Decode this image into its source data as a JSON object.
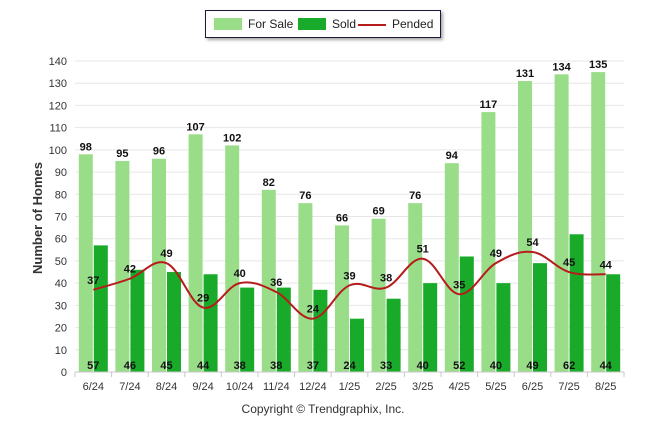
{
  "chart_data": {
    "type": "bar",
    "categories": [
      "6/24",
      "7/24",
      "8/24",
      "9/24",
      "10/24",
      "11/24",
      "12/24",
      "1/25",
      "2/25",
      "3/25",
      "4/25",
      "5/25",
      "6/25",
      "7/25",
      "8/25"
    ],
    "series": [
      {
        "name": "For Sale",
        "type": "bar",
        "color": "#99dd88",
        "values": [
          98,
          95,
          96,
          107,
          102,
          82,
          76,
          66,
          69,
          76,
          94,
          117,
          131,
          134,
          135
        ]
      },
      {
        "name": "Sold",
        "type": "bar",
        "color": "#1aaa2a",
        "values": [
          57,
          46,
          45,
          44,
          38,
          38,
          37,
          24,
          33,
          40,
          52,
          40,
          49,
          62,
          44
        ]
      },
      {
        "name": "Pended",
        "type": "line",
        "color": "#b71c1c",
        "values": [
          37,
          42,
          49,
          29,
          40,
          36,
          24,
          39,
          38,
          51,
          35,
          49,
          54,
          45,
          44
        ]
      }
    ],
    "ylabel": "Number of Homes",
    "xlabel": "",
    "ylim": [
      0,
      140
    ],
    "yticks": [
      0,
      10,
      20,
      30,
      40,
      50,
      60,
      70,
      80,
      90,
      100,
      110,
      120,
      130,
      140
    ],
    "grid": true,
    "legend_placement": "top-center"
  },
  "footer": {
    "copyright": "Copyright © Trendgraphix, Inc."
  }
}
